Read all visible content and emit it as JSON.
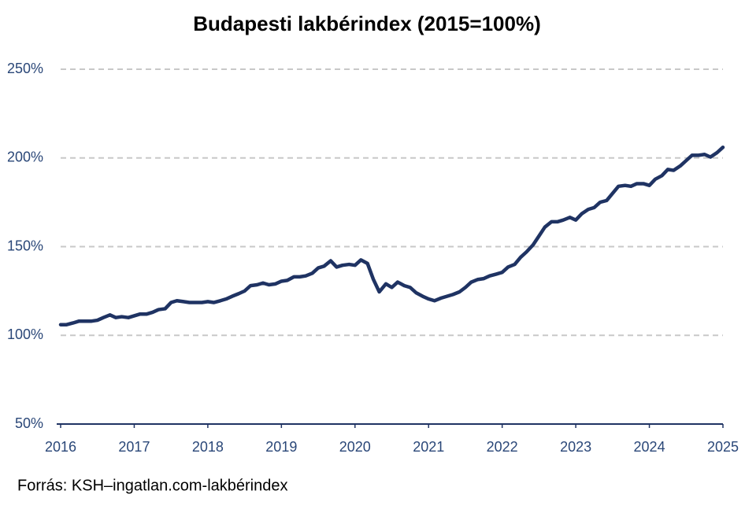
{
  "chart_data": {
    "type": "line",
    "title": "Budapesti lakbérindex (2015=100%)",
    "source": "Forrás: KSH–ingatlan.com-lakbérindex",
    "x": [
      2016,
      2016.08,
      2016.17,
      2016.25,
      2016.33,
      2016.42,
      2016.5,
      2016.58,
      2016.67,
      2016.75,
      2016.83,
      2016.92,
      2017,
      2017.08,
      2017.17,
      2017.25,
      2017.33,
      2017.42,
      2017.5,
      2017.58,
      2017.67,
      2017.75,
      2017.83,
      2017.92,
      2018,
      2018.08,
      2018.17,
      2018.25,
      2018.33,
      2018.42,
      2018.5,
      2018.58,
      2018.67,
      2018.75,
      2018.83,
      2018.92,
      2019,
      2019.08,
      2019.17,
      2019.25,
      2019.33,
      2019.42,
      2019.5,
      2019.58,
      2019.67,
      2019.75,
      2019.83,
      2019.92,
      2020,
      2020.08,
      2020.17,
      2020.25,
      2020.33,
      2020.42,
      2020.5,
      2020.58,
      2020.67,
      2020.75,
      2020.83,
      2020.92,
      2021,
      2021.08,
      2021.17,
      2021.25,
      2021.33,
      2021.42,
      2021.5,
      2021.58,
      2021.67,
      2021.75,
      2021.83,
      2021.92,
      2022,
      2022.08,
      2022.17,
      2022.25,
      2022.33,
      2022.42,
      2022.5,
      2022.58,
      2022.67,
      2022.75,
      2022.83,
      2022.92,
      2023,
      2023.08,
      2023.17,
      2023.25,
      2023.33,
      2023.42,
      2023.5,
      2023.58,
      2023.67,
      2023.75,
      2023.83,
      2023.92,
      2024,
      2024.08,
      2024.17,
      2024.25,
      2024.33,
      2024.42,
      2024.5,
      2024.58,
      2024.67,
      2024.75,
      2024.83,
      2024.92,
      2025
    ],
    "series": [
      {
        "color": "#1f3363",
        "values": [
          106,
          106,
          107,
          108,
          108,
          108,
          108.5,
          110,
          111.5,
          110,
          110.5,
          110,
          111,
          112,
          112,
          113,
          114.5,
          115,
          118.5,
          119.5,
          119,
          118.5,
          118.5,
          118.5,
          119,
          118.5,
          119.5,
          120.5,
          122,
          123.5,
          125,
          128,
          128.5,
          129.5,
          128.5,
          129,
          130.5,
          131,
          133,
          133,
          133.5,
          135,
          138,
          139,
          142,
          138.5,
          139.5,
          140,
          139.5,
          142.5,
          140.5,
          131.5,
          124.5,
          129,
          127,
          130,
          128,
          127,
          124,
          122,
          120.5,
          119.5,
          121,
          122,
          123,
          124.5,
          127,
          130,
          131.5,
          132,
          133.5,
          134.5,
          135.5,
          138.5,
          140,
          144,
          147,
          151,
          156,
          161,
          164,
          164,
          165,
          166.5,
          165,
          168.5,
          171,
          172,
          175,
          176,
          180,
          184,
          184.5,
          184,
          185.5,
          185.5,
          184.5,
          188,
          190,
          193.5,
          193,
          195.5,
          198.5,
          201.5,
          201.5,
          202,
          200.5,
          203,
          206
        ]
      }
    ],
    "xlim": [
      2016,
      2025
    ],
    "xticks": [
      2016,
      2017,
      2018,
      2019,
      2020,
      2021,
      2022,
      2023,
      2024,
      2025
    ],
    "ylim": [
      50,
      250
    ],
    "yticks": [
      {
        "value": 50,
        "label": "50%"
      },
      {
        "value": 100,
        "label": "100%"
      },
      {
        "value": 150,
        "label": "150%"
      },
      {
        "value": 200,
        "label": "200%"
      },
      {
        "value": 250,
        "label": "250%"
      }
    ],
    "grid": true
  }
}
